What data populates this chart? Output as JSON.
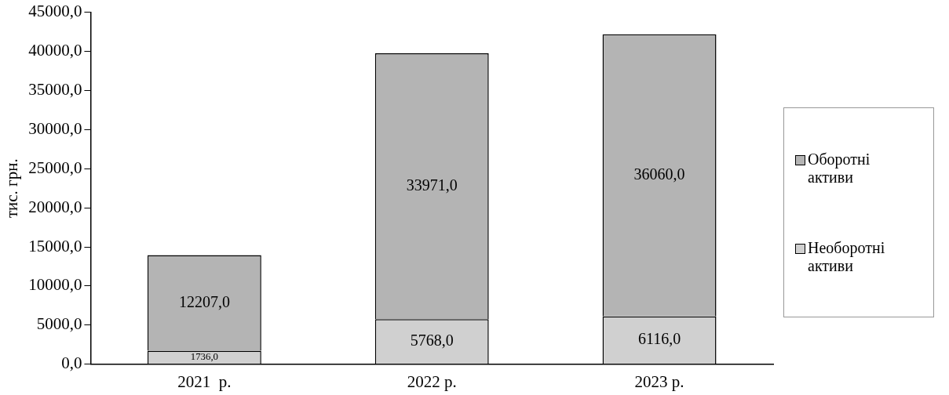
{
  "chart_data": {
    "type": "bar",
    "ylabel": "тис. грн.",
    "categories": [
      "2021  р.",
      "2022 р.",
      "2023 р."
    ],
    "stacked": true,
    "legend": "right",
    "grid": false,
    "series": [
      {
        "name": "Необоротні активи",
        "color": "#d0d0d0",
        "values": [
          1736,
          5768,
          6116
        ],
        "value_labels": [
          "1736,0",
          "5768,0",
          "6116,0"
        ]
      },
      {
        "name": "Оборотні активи",
        "color": "#b4b4b4",
        "values": [
          12207,
          33971,
          36060
        ],
        "value_labels": [
          "12207,0",
          "33971,0",
          "36060,0"
        ]
      }
    ],
    "ylim": [
      0,
      45000
    ],
    "yticks": [
      {
        "value": 0,
        "label": "0,0"
      },
      {
        "value": 5000,
        "label": "5000,0"
      },
      {
        "value": 10000,
        "label": "10000,0"
      },
      {
        "value": 15000,
        "label": "15000,0"
      },
      {
        "value": 20000,
        "label": "20000,0"
      },
      {
        "value": 25000,
        "label": "25000,0"
      },
      {
        "value": 30000,
        "label": "30000,0"
      },
      {
        "value": 35000,
        "label": "35000,0"
      },
      {
        "value": 40000,
        "label": "40000,0"
      },
      {
        "value": 45000,
        "label": "45000,0"
      }
    ]
  }
}
